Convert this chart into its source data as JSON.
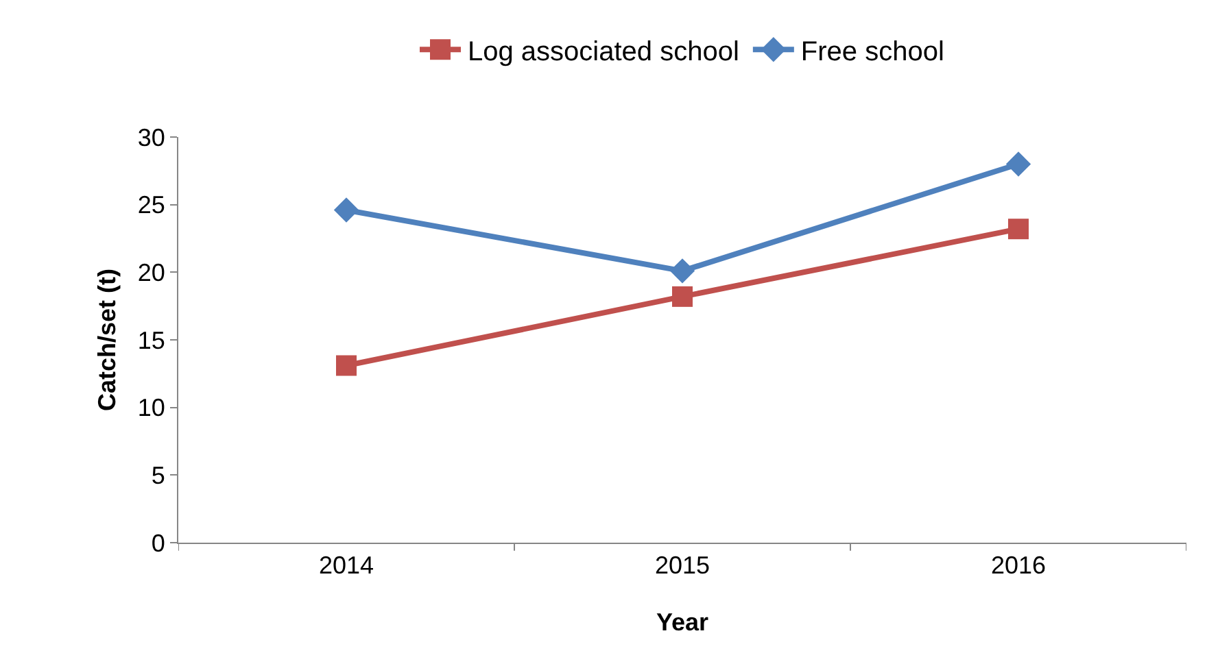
{
  "chart_data": {
    "type": "line",
    "xlabel": "Year",
    "ylabel": "Catch/set (t)",
    "categories": [
      "2014",
      "2015",
      "2016"
    ],
    "series": [
      {
        "name": "Log associated school",
        "color": "#c0504d",
        "marker": "square",
        "values": [
          13.1,
          18.2,
          23.2
        ]
      },
      {
        "name": "Free school",
        "color": "#4f81bd",
        "marker": "diamond",
        "values": [
          24.6,
          20.1,
          28.0
        ]
      }
    ],
    "ylim": [
      0,
      30
    ],
    "yticks": [
      0,
      5,
      10,
      15,
      20,
      25,
      30
    ],
    "grid": false,
    "legend": "top",
    "line_style": "solid"
  }
}
